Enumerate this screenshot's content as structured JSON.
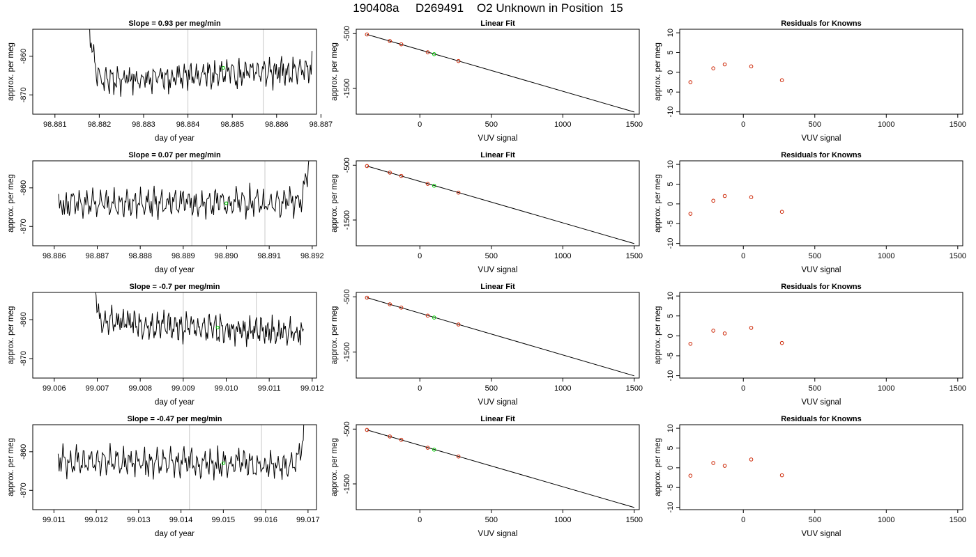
{
  "page_title": "190408a     D269491    O2 Unknown in Position  15",
  "colors": {
    "line": "#000000",
    "known_point": "#cc2200",
    "unknown_point": "#00cc00",
    "marker_line": "#c8c8c8"
  },
  "chart_data": [
    {
      "type": "line",
      "row": 0,
      "col": 0,
      "title": "Slope =  0.93  per meg/min",
      "xlabel": "day of year",
      "ylabel": "approx. per meg",
      "xlim": [
        98.8805,
        98.8869
      ],
      "ylim": [
        -875,
        -853
      ],
      "xticks": [
        98.881,
        98.882,
        98.883,
        98.884,
        98.885,
        98.886,
        98.887
      ],
      "xtick_labels": [
        "98.881",
        "98.882",
        "98.883",
        "98.884",
        "98.885",
        "98.886",
        "98.887"
      ],
      "yticks": [
        -860,
        -870
      ],
      "ytick_labels": [
        "-860",
        "-870"
      ],
      "vlines": [
        98.884,
        98.8857
      ],
      "trace_start": 98.8817,
      "trace_end": 98.8868,
      "trace_spike": "start",
      "trace_base": -865,
      "trace_trend": 1.5,
      "marker_point": {
        "x": 98.8848,
        "y": -863
      }
    },
    {
      "type": "line",
      "row": 1,
      "col": 0,
      "title": "Slope =  0.07  per meg/min",
      "xlabel": "day of year",
      "ylabel": "approx. per meg",
      "xlim": [
        98.8855,
        98.8921
      ],
      "ylim": [
        -875,
        -853
      ],
      "xticks": [
        98.886,
        98.887,
        98.888,
        98.889,
        98.89,
        98.891,
        98.892
      ],
      "xtick_labels": [
        "98.886",
        "98.887",
        "98.888",
        "98.889",
        "98.890",
        "98.891",
        "98.892"
      ],
      "yticks": [
        -860,
        -870
      ],
      "ytick_labels": [
        "-860",
        "-870"
      ],
      "vlines": [
        98.8892,
        98.8909
      ],
      "trace_start": 98.8861,
      "trace_end": 98.892,
      "trace_spike": "end",
      "trace_base": -864,
      "trace_trend": 0.3,
      "marker_point": {
        "x": 98.89,
        "y": -864
      }
    },
    {
      "type": "line",
      "row": 2,
      "col": 0,
      "title": "Slope =  -0.7  per meg/min",
      "xlabel": "day of year",
      "ylabel": "approx. per meg",
      "xlim": [
        99.0055,
        99.0121
      ],
      "ylim": [
        -875,
        -853
      ],
      "xticks": [
        99.006,
        99.007,
        99.008,
        99.009,
        99.01,
        99.011,
        99.012
      ],
      "xtick_labels": [
        "99.006",
        "99.007",
        "99.008",
        "99.009",
        "99.010",
        "99.011",
        "99.012"
      ],
      "yticks": [
        -860,
        -870
      ],
      "ytick_labels": [
        "-860",
        "-870"
      ],
      "vlines": [
        99.009,
        99.0107
      ],
      "trace_start": 99.0068,
      "trace_end": 99.0118,
      "trace_spike": "start",
      "trace_base": -862,
      "trace_trend": -1.5,
      "marker_point": {
        "x": 99.0098,
        "y": -862
      }
    },
    {
      "type": "line",
      "row": 3,
      "col": 0,
      "title": "Slope =  -0.47  per meg/min",
      "xlabel": "day of year",
      "ylabel": "approx. per meg",
      "xlim": [
        99.0105,
        99.0172
      ],
      "ylim": [
        -875,
        -853
      ],
      "xticks": [
        99.011,
        99.012,
        99.013,
        99.014,
        99.015,
        99.016,
        99.017
      ],
      "xtick_labels": [
        "99.011",
        "99.012",
        "99.013",
        "99.014",
        "99.015",
        "99.016",
        "99.017"
      ],
      "yticks": [
        -860,
        -870
      ],
      "ytick_labels": [
        "-860",
        "-870"
      ],
      "vlines": [
        99.0142,
        99.0159
      ],
      "trace_start": 99.0111,
      "trace_end": 99.017,
      "trace_spike": "end",
      "trace_base": -863,
      "trace_trend": -0.5,
      "marker_point": {
        "x": 99.015,
        "y": -863
      }
    },
    {
      "type": "scatter",
      "row": 0,
      "col": 1,
      "title": "Linear Fit",
      "xlabel": "VUV signal",
      "ylabel": "approx. per meg",
      "xlim": [
        -445,
        1535
      ],
      "ylim": [
        -1970,
        -420
      ],
      "xticks": [
        0,
        500,
        1000,
        1500
      ],
      "xtick_labels": [
        "0",
        "500",
        "1000",
        "1500"
      ],
      "yticks": [
        -500,
        -1500
      ],
      "ytick_labels": [
        "-500",
        "-1500"
      ],
      "fit_line": {
        "x": [
          -370,
          1500
        ],
        "y": [
          -515,
          -1930
        ]
      },
      "known_points": {
        "x": [
          -370,
          -210,
          -130,
          55,
          270
        ],
        "y": [
          -515,
          -635,
          -695,
          -840,
          -1000
        ]
      },
      "unknown_points": {
        "x": [
          100
        ],
        "y": [
          -875
        ]
      }
    },
    {
      "type": "scatter",
      "row": 1,
      "col": 1,
      "title": "Linear Fit",
      "xlabel": "VUV signal",
      "ylabel": "approx. per meg",
      "xlim": [
        -445,
        1535
      ],
      "ylim": [
        -1970,
        -420
      ],
      "xticks": [
        0,
        500,
        1000,
        1500
      ],
      "xtick_labels": [
        "0",
        "500",
        "1000",
        "1500"
      ],
      "yticks": [
        -500,
        -1500
      ],
      "ytick_labels": [
        "-500",
        "-1500"
      ],
      "fit_line": {
        "x": [
          -370,
          1500
        ],
        "y": [
          -515,
          -1930
        ]
      },
      "known_points": {
        "x": [
          -370,
          -210,
          -130,
          55,
          270
        ],
        "y": [
          -515,
          -635,
          -695,
          -840,
          -1000
        ]
      },
      "unknown_points": {
        "x": [
          100
        ],
        "y": [
          -875
        ]
      }
    },
    {
      "type": "scatter",
      "row": 2,
      "col": 1,
      "title": "Linear Fit",
      "xlabel": "VUV signal",
      "ylabel": "approx. per meg",
      "xlim": [
        -445,
        1535
      ],
      "ylim": [
        -1970,
        -420
      ],
      "xticks": [
        0,
        500,
        1000,
        1500
      ],
      "xtick_labels": [
        "0",
        "500",
        "1000",
        "1500"
      ],
      "yticks": [
        -500,
        -1500
      ],
      "ytick_labels": [
        "-500",
        "-1500"
      ],
      "fit_line": {
        "x": [
          -370,
          1500
        ],
        "y": [
          -515,
          -1930
        ]
      },
      "known_points": {
        "x": [
          -370,
          -210,
          -130,
          55,
          270
        ],
        "y": [
          -515,
          -635,
          -695,
          -840,
          -1000
        ]
      },
      "unknown_points": {
        "x": [
          100
        ],
        "y": [
          -875
        ]
      }
    },
    {
      "type": "scatter",
      "row": 3,
      "col": 1,
      "title": "Linear Fit",
      "xlabel": "VUV signal",
      "ylabel": "approx. per meg",
      "xlim": [
        -445,
        1535
      ],
      "ylim": [
        -1970,
        -420
      ],
      "xticks": [
        0,
        500,
        1000,
        1500
      ],
      "xtick_labels": [
        "0",
        "500",
        "1000",
        "1500"
      ],
      "yticks": [
        -500,
        -1500
      ],
      "ytick_labels": [
        "-500",
        "-1500"
      ],
      "fit_line": {
        "x": [
          -370,
          1500
        ],
        "y": [
          -515,
          -1930
        ]
      },
      "known_points": {
        "x": [
          -370,
          -210,
          -130,
          55,
          270
        ],
        "y": [
          -515,
          -635,
          -695,
          -840,
          -1000
        ]
      },
      "unknown_points": {
        "x": [
          100
        ],
        "y": [
          -875
        ]
      }
    },
    {
      "type": "scatter",
      "row": 0,
      "col": 2,
      "title": "Residuals for Knowns",
      "xlabel": "VUV signal",
      "ylabel": "approx. per meg",
      "xlim": [
        -445,
        1535
      ],
      "ylim": [
        -10.6,
        10.9
      ],
      "xticks": [
        0,
        500,
        1000,
        1500
      ],
      "xtick_labels": [
        "0",
        "500",
        "1000",
        "1500"
      ],
      "yticks": [
        10,
        5,
        0,
        -5,
        -10
      ],
      "ytick_labels": [
        "10",
        "5",
        "0",
        "-5",
        "-10"
      ],
      "known_points": {
        "x": [
          -370,
          -210,
          -130,
          55,
          270
        ],
        "y": [
          -2.5,
          1.0,
          2.0,
          1.5,
          -2.0
        ]
      }
    },
    {
      "type": "scatter",
      "row": 1,
      "col": 2,
      "title": "Residuals for Knowns",
      "xlabel": "VUV signal",
      "ylabel": "approx. per meg",
      "xlim": [
        -445,
        1535
      ],
      "ylim": [
        -10.6,
        10.9
      ],
      "xticks": [
        0,
        500,
        1000,
        1500
      ],
      "xtick_labels": [
        "0",
        "500",
        "1000",
        "1500"
      ],
      "yticks": [
        10,
        5,
        0,
        -5,
        -10
      ],
      "ytick_labels": [
        "10",
        "5",
        "0",
        "-5",
        "-10"
      ],
      "known_points": {
        "x": [
          -370,
          -210,
          -130,
          55,
          270
        ],
        "y": [
          -2.5,
          0.8,
          2.0,
          1.7,
          -2.0
        ]
      }
    },
    {
      "type": "scatter",
      "row": 2,
      "col": 2,
      "title": "Residuals for Knowns",
      "xlabel": "VUV signal",
      "ylabel": "approx. per meg",
      "xlim": [
        -445,
        1535
      ],
      "ylim": [
        -10.6,
        10.9
      ],
      "xticks": [
        0,
        500,
        1000,
        1500
      ],
      "xtick_labels": [
        "0",
        "500",
        "1000",
        "1500"
      ],
      "yticks": [
        10,
        5,
        0,
        -5,
        -10
      ],
      "ytick_labels": [
        "10",
        "5",
        "0",
        "-5",
        "-10"
      ],
      "known_points": {
        "x": [
          -370,
          -210,
          -130,
          55,
          270
        ],
        "y": [
          -2.0,
          1.3,
          0.6,
          2.0,
          -1.8
        ]
      }
    },
    {
      "type": "scatter",
      "row": 3,
      "col": 2,
      "title": "Residuals for Knowns",
      "xlabel": "VUV signal",
      "ylabel": "approx. per meg",
      "xlim": [
        -445,
        1535
      ],
      "ylim": [
        -10.6,
        10.9
      ],
      "xticks": [
        0,
        500,
        1000,
        1500
      ],
      "xtick_labels": [
        "0",
        "500",
        "1000",
        "1500"
      ],
      "yticks": [
        10,
        5,
        0,
        -5,
        -10
      ],
      "ytick_labels": [
        "10",
        "5",
        "0",
        "-5",
        "-10"
      ],
      "known_points": {
        "x": [
          -370,
          -210,
          -130,
          55,
          270
        ],
        "y": [
          -2.0,
          1.2,
          0.5,
          2.1,
          -1.9
        ]
      }
    }
  ]
}
